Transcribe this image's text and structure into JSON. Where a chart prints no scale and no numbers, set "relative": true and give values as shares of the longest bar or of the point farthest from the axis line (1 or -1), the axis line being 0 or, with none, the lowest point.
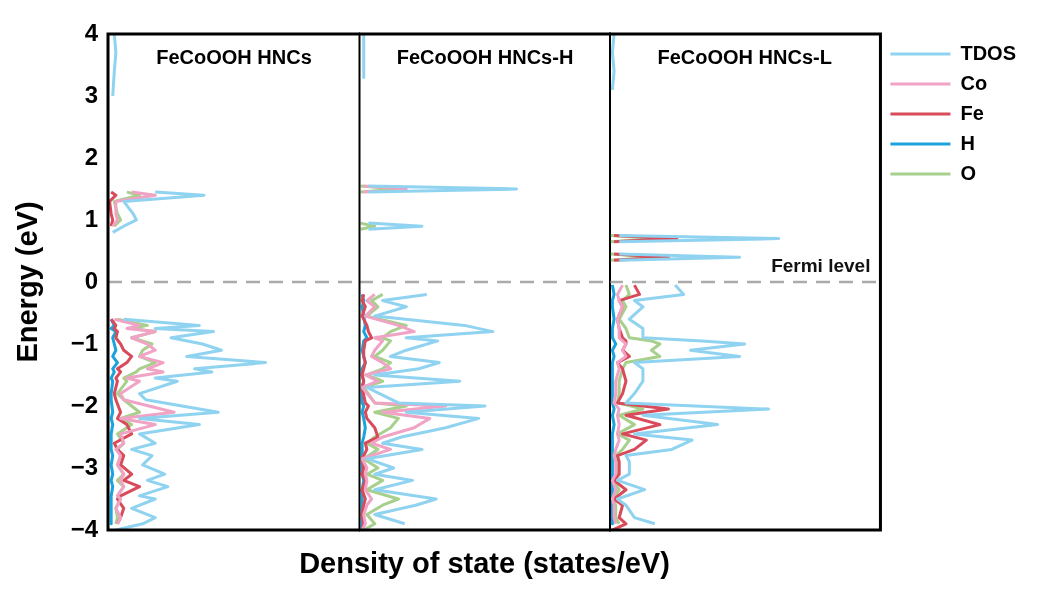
{
  "chart_data": [
    {
      "type": "line",
      "orientation": "horizontal",
      "relative": true,
      "title": "FeCoOOH HNCs",
      "ylabel": "Energy (eV)",
      "ylim": [
        -4,
        4
      ],
      "yticks": [
        -4,
        -3,
        -2,
        -1,
        0,
        1,
        2,
        3,
        4
      ],
      "tick_labels": "y",
      "legend": false,
      "ref_lines": [
        {
          "axis": "y",
          "value": 0,
          "color": "#aaaaaa",
          "line_style": "dashed"
        }
      ],
      "x": [
        4.0,
        3.7,
        3.4,
        3.0,
        2.0,
        1.45,
        1.4,
        1.3,
        1.1,
        1.0,
        0.9,
        0.8,
        0.5,
        -0.6,
        -0.7,
        -0.75,
        -0.8,
        -0.9,
        -1.0,
        -1.1,
        -1.2,
        -1.3,
        -1.4,
        -1.45,
        -1.55,
        -1.6,
        -1.8,
        -1.9,
        -2.1,
        -2.2,
        -2.3,
        -2.45,
        -2.6,
        -2.7,
        -2.8,
        -2.95,
        -3.1,
        -3.2,
        -3.3,
        -3.45,
        -3.5,
        -3.65,
        -3.8,
        -3.9,
        -4.0
      ],
      "series": [
        {
          "color": "#8fd3f0",
          "values": [
            0.04,
            0.05,
            0.04,
            0.03,
            null,
            0.3,
            0.61,
            0.1,
            0.16,
            0.18,
            0.1,
            0.03,
            null,
            0.1,
            0.58,
            0.3,
            0.67,
            0.4,
            0.6,
            0.72,
            0.5,
            1,
            0.55,
            0.66,
            0.3,
            0.44,
            0.2,
            0.24,
            0.7,
            0.2,
            0.58,
            0.2,
            0.3,
            0.15,
            0.28,
            0.22,
            0.36,
            0.25,
            0.38,
            0.2,
            0.3,
            0.15,
            0.3,
            0.22,
            0.05
          ]
        },
        {
          "color": "#f0a3c4",
          "values": [
            null,
            null,
            null,
            null,
            null,
            0.15,
            0.3,
            0.05,
            0.05,
            0.06,
            0.03,
            null,
            null,
            0.04,
            0.2,
            0.12,
            0.3,
            0.15,
            0.25,
            0.3,
            0.2,
            0.35,
            0.25,
            0.35,
            0.12,
            0.2,
            0.08,
            0.1,
            0.42,
            0.08,
            0.3,
            0.08,
            0.1,
            0.05,
            0.08,
            0.06,
            0.1,
            0.08,
            0.1,
            0.06,
            0.08,
            0.05,
            0.08,
            0.06,
            null
          ]
        },
        {
          "color": "#d94a5a",
          "values": [
            null,
            null,
            null,
            null,
            null,
            0.02,
            0.05,
            0.01,
            0.02,
            0.03,
            0.02,
            null,
            null,
            0.02,
            0.05,
            0.04,
            0.06,
            0.05,
            0.08,
            0.1,
            0.15,
            0.12,
            0.06,
            0.08,
            0.05,
            0.06,
            0.04,
            0.05,
            0.08,
            0.06,
            0.12,
            0.15,
            0.04,
            0.06,
            0.1,
            0.08,
            0.15,
            0.1,
            0.2,
            0.08,
            0.06,
            0.1,
            0.08,
            0.06,
            null
          ]
        },
        {
          "color": "#1aa3dc",
          "values": [
            null,
            null,
            null,
            null,
            null,
            null,
            null,
            null,
            null,
            null,
            null,
            null,
            null,
            0.02,
            0.04,
            0.02,
            0.05,
            0.03,
            0.04,
            0.05,
            0.03,
            0.06,
            0.03,
            0.04,
            0.02,
            0.03,
            0.02,
            0.02,
            0.03,
            0.02,
            0.03,
            0.02,
            0.02,
            0.02,
            0.03,
            0.02,
            0.03,
            0.02,
            0.03,
            0.02,
            0.02,
            0.02,
            0.02,
            0.02,
            null
          ]
        },
        {
          "color": "#a8d08d",
          "values": [
            null,
            null,
            null,
            null,
            null,
            0.12,
            0.2,
            0.04,
            0.06,
            0.08,
            0.04,
            null,
            null,
            0.06,
            0.25,
            0.15,
            0.3,
            0.15,
            0.28,
            0.22,
            0.2,
            0.3,
            0.2,
            0.18,
            0.1,
            0.12,
            0.06,
            0.1,
            0.2,
            0.08,
            0.15,
            0.06,
            0.1,
            0.06,
            0.08,
            0.06,
            0.1,
            0.06,
            0.1,
            0.06,
            0.08,
            0.05,
            0.06,
            0.05,
            null
          ]
        }
      ]
    },
    {
      "type": "line",
      "orientation": "horizontal",
      "relative": true,
      "title": "FeCoOOH HNCs-H",
      "xlabel": "Density of state (states/eV)",
      "ylim": [
        -4,
        4
      ],
      "tick_labels": false,
      "legend": false,
      "ref_lines": [
        {
          "axis": "y",
          "value": 0,
          "color": "#aaaaaa",
          "line_style": "dashed"
        }
      ],
      "x": [
        4.0,
        3.6,
        3.3,
        2.5,
        1.55,
        1.5,
        1.45,
        1.2,
        0.95,
        0.9,
        0.85,
        0.5,
        -0.2,
        -0.3,
        -0.4,
        -0.55,
        -0.7,
        -0.8,
        -0.9,
        -0.95,
        -1.1,
        -1.2,
        -1.3,
        -1.4,
        -1.5,
        -1.6,
        -1.7,
        -1.95,
        -2.0,
        -2.1,
        -2.2,
        -2.35,
        -2.5,
        -2.6,
        -2.7,
        -2.85,
        -3.0,
        -3.1,
        -3.2,
        -3.35,
        -3.5,
        -3.6,
        -3.75,
        -3.9,
        -4.0
      ],
      "series": [
        {
          "color": "#8fd3f0",
          "values": [
            0.03,
            0.03,
            0.03,
            null,
            0.06,
            1,
            0.06,
            null,
            0.06,
            0.4,
            0.06,
            null,
            0.43,
            0.15,
            0.3,
            0.1,
            0.67,
            0.85,
            0.3,
            0.5,
            0.3,
            0.2,
            0.51,
            0.38,
            0.1,
            0.64,
            0.05,
            0.25,
            0.8,
            0.3,
            0.76,
            0.55,
            0.27,
            0.15,
            0.4,
            0.05,
            0.22,
            0.1,
            0.34,
            0.1,
            0.49,
            0.36,
            0.1,
            0.29,
            null
          ]
        },
        {
          "color": "#f0a3c4",
          "values": [
            null,
            null,
            null,
            null,
            0.03,
            0.3,
            0.03,
            null,
            null,
            null,
            null,
            null,
            0.1,
            0.05,
            0.1,
            0.04,
            0.25,
            0.35,
            0.1,
            0.15,
            0.1,
            0.08,
            0.15,
            0.2,
            0.04,
            0.12,
            0.02,
            0.1,
            0.55,
            0.15,
            0.45,
            0.35,
            0.15,
            0.08,
            0.2,
            0.02,
            0.05,
            0.04,
            0.05,
            0.04,
            0.08,
            0.05,
            0.03,
            0.04,
            0.02
          ]
        },
        {
          "color": "#d94a5a",
          "values": [
            null,
            null,
            null,
            null,
            null,
            null,
            null,
            null,
            null,
            null,
            null,
            null,
            0.03,
            0.02,
            0.04,
            0.02,
            0.05,
            0.06,
            0.08,
            0.04,
            0.03,
            0.03,
            0.04,
            0.03,
            0.02,
            0.03,
            0.02,
            0.04,
            0.06,
            0.04,
            0.05,
            0.1,
            0.12,
            0.04,
            0.05,
            0.02,
            0.03,
            0.02,
            0.04,
            0.02,
            0.04,
            0.03,
            0.02,
            0.03,
            0.02
          ]
        },
        {
          "color": "#1aa3dc",
          "values": [
            null,
            null,
            null,
            null,
            null,
            null,
            null,
            null,
            null,
            null,
            null,
            null,
            0.02,
            0.03,
            0.02,
            0.03,
            0.04,
            0.03,
            0.05,
            0.03,
            0.02,
            0.03,
            0.04,
            0.02,
            0.02,
            0.03,
            0.02,
            0.02,
            0.03,
            0.02,
            0.03,
            0.04,
            0.03,
            0.02,
            0.02,
            0.02,
            0.02,
            0.02,
            0.03,
            0.02,
            0.02,
            0.02,
            0.02,
            0.02,
            0.02
          ]
        },
        {
          "color": "#a8d08d",
          "values": [
            null,
            null,
            null,
            null,
            0.01,
            0.25,
            0.01,
            null,
            0.01,
            0.1,
            0.01,
            null,
            0.15,
            0.08,
            0.12,
            0.05,
            0.3,
            0.2,
            0.15,
            0.2,
            0.15,
            0.1,
            0.2,
            0.15,
            0.05,
            0.15,
            0.03,
            0.1,
            0.3,
            0.1,
            0.25,
            0.2,
            0.1,
            0.05,
            0.12,
            0.03,
            0.12,
            0.05,
            0.15,
            0.05,
            0.25,
            0.15,
            0.05,
            0.1,
            0.03
          ]
        }
      ]
    },
    {
      "type": "line",
      "orientation": "horizontal",
      "relative": true,
      "title": "FeCoOOH HNCs-L",
      "ylim": [
        -4,
        4
      ],
      "tick_labels": false,
      "legend": "right",
      "ref_lines": [
        {
          "axis": "y",
          "value": 0,
          "label": "Fermi level",
          "color": "#aaaaaa",
          "line_style": "dashed"
        }
      ],
      "x": [
        4.0,
        3.7,
        3.4,
        3.1,
        2.0,
        0.75,
        0.7,
        0.65,
        0.55,
        0.45,
        0.4,
        0.35,
        0.2,
        -0.05,
        -0.2,
        -0.3,
        -0.4,
        -0.6,
        -0.75,
        -0.9,
        -0.95,
        -1.0,
        -1.1,
        -1.2,
        -1.3,
        -1.4,
        -1.6,
        -1.8,
        -1.95,
        -2.05,
        -2.15,
        -2.3,
        -2.45,
        -2.55,
        -2.7,
        -2.8,
        -2.9,
        -3.1,
        -3.2,
        -3.35,
        -3.5,
        -3.6,
        -3.8,
        -3.9,
        -4.0
      ],
      "series": [
        {
          "name": "TDOS",
          "color": "#8fd3f0",
          "values": [
            0.03,
            0.02,
            0.03,
            0.02,
            null,
            0.06,
            1,
            0.06,
            null,
            0.06,
            0.77,
            0.06,
            null,
            0.39,
            0.44,
            0.15,
            0.2,
            0.12,
            0.2,
            0.2,
            0.55,
            0.8,
            0.48,
            0.77,
            0.15,
            0.2,
            0.2,
            0.15,
            0.1,
            0.94,
            0.2,
            0.64,
            0.15,
            0.49,
            0.37,
            0.1,
            0.12,
            0.12,
            0.05,
            0.21,
            0.05,
            0.1,
            0.15,
            0.27,
            null
          ]
        },
        {
          "name": "Co",
          "color": "#f0a3c4",
          "values": [
            null,
            null,
            null,
            null,
            null,
            null,
            null,
            null,
            null,
            null,
            null,
            null,
            null,
            0.08,
            0.05,
            0.06,
            0.08,
            0.05,
            0.06,
            0.06,
            0.08,
            0.1,
            0.08,
            0.1,
            0.05,
            0.06,
            0.04,
            0.04,
            0.03,
            0.06,
            0.05,
            0.06,
            0.05,
            0.06,
            0.04,
            0.03,
            0.04,
            0.04,
            0.02,
            0.04,
            0.02,
            0.03,
            0.03,
            0.04,
            null
          ]
        },
        {
          "name": "Fe",
          "color": "#d94a5a",
          "values": [
            null,
            null,
            null,
            null,
            null,
            0.03,
            0.4,
            0.03,
            null,
            0.03,
            0.35,
            0.03,
            null,
            0.15,
            0.18,
            0.06,
            0.08,
            0.05,
            0.06,
            0.08,
            0.1,
            0.1,
            0.08,
            0.12,
            0.05,
            0.08,
            0.1,
            0.08,
            0.05,
            0.35,
            0.1,
            0.3,
            0.08,
            0.22,
            0.15,
            0.05,
            0.06,
            0.06,
            0.03,
            0.1,
            0.03,
            0.08,
            0.06,
            0.1,
            0.02
          ]
        },
        {
          "name": "H",
          "color": "#1aa3dc",
          "values": [
            null,
            null,
            null,
            null,
            null,
            null,
            null,
            null,
            null,
            null,
            null,
            null,
            null,
            0.02,
            0.03,
            0.02,
            0.02,
            0.03,
            0.02,
            0.02,
            0.03,
            0.04,
            0.02,
            0.03,
            0.02,
            0.02,
            0.02,
            0.02,
            0.02,
            0.03,
            0.02,
            0.03,
            0.02,
            0.02,
            0.02,
            0.02,
            0.02,
            0.02,
            0.02,
            0.02,
            0.02,
            0.02,
            0.02,
            0.02,
            null
          ]
        },
        {
          "name": "O",
          "color": "#a8d08d",
          "values": [
            null,
            null,
            null,
            null,
            null,
            0.01,
            0.3,
            0.01,
            null,
            0.01,
            0.28,
            0.01,
            null,
            0.1,
            0.12,
            0.08,
            0.1,
            0.06,
            0.1,
            0.12,
            0.25,
            0.3,
            0.25,
            0.3,
            0.1,
            0.08,
            0.06,
            0.06,
            0.05,
            0.2,
            0.06,
            0.15,
            0.05,
            0.12,
            0.08,
            0.04,
            0.05,
            0.05,
            0.02,
            0.06,
            0.02,
            0.04,
            0.04,
            0.06,
            null
          ]
        }
      ]
    }
  ]
}
